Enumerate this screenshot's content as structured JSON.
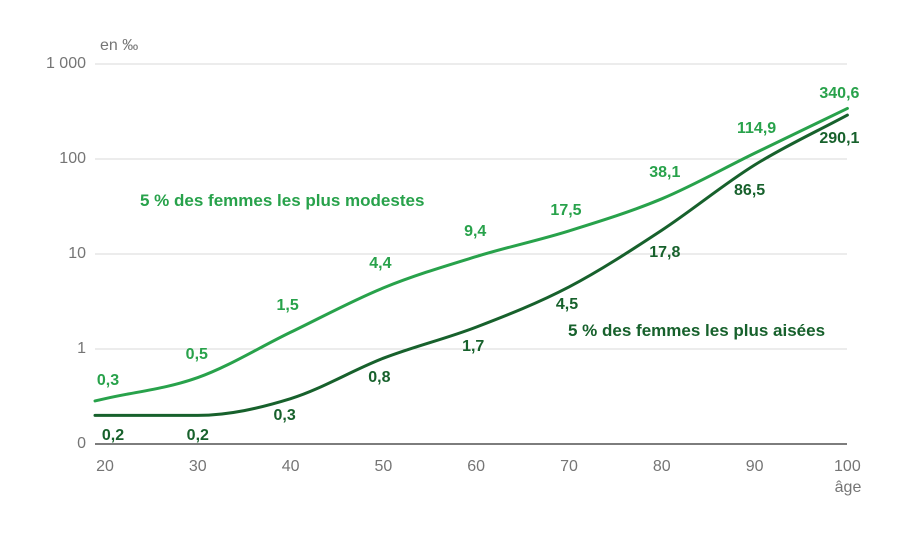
{
  "chart_data": {
    "type": "line",
    "unit_label": "en ‰",
    "xlabel": "âge",
    "yscale": "log",
    "grid": "horizontal",
    "legend_position": "inline-annotations",
    "x": [
      20,
      30,
      40,
      50,
      60,
      70,
      80,
      90,
      100
    ],
    "x_tick_labels": [
      "20",
      "30",
      "40",
      "50",
      "60",
      "70",
      "80",
      "90",
      "100"
    ],
    "y_tick_labels": [
      "1 000",
      "100",
      "10",
      "1",
      "0"
    ],
    "xlim": [
      20,
      100
    ],
    "series": [
      {
        "name": "5 % des femmes les plus modestes",
        "color": "#28a24b",
        "values": [
          0.3,
          0.5,
          1.5,
          4.4,
          9.4,
          17.5,
          38.1,
          114.9,
          340.6
        ],
        "value_labels": [
          "0,3",
          "0,5",
          "1,5",
          "4,4",
          "9,4",
          "17,5",
          "38,1",
          "114,9",
          "340,6"
        ]
      },
      {
        "name": "5 % des femmes les plus aisées",
        "color": "#17612c",
        "values": [
          0.2,
          0.2,
          0.3,
          0.8,
          1.7,
          4.5,
          17.8,
          86.5,
          290.1
        ],
        "value_labels": [
          "0,2",
          "0,2",
          "0,3",
          "0,8",
          "1,7",
          "4,5",
          "17,8",
          "86,5",
          "290,1"
        ]
      }
    ]
  },
  "colors": {
    "background": "#ffffff",
    "gridline": "#d9d9d9",
    "baseline": "#7d7d7d",
    "tick_text": "#757575",
    "series_modestes": "#28a24b",
    "series_aisees": "#17612c"
  }
}
